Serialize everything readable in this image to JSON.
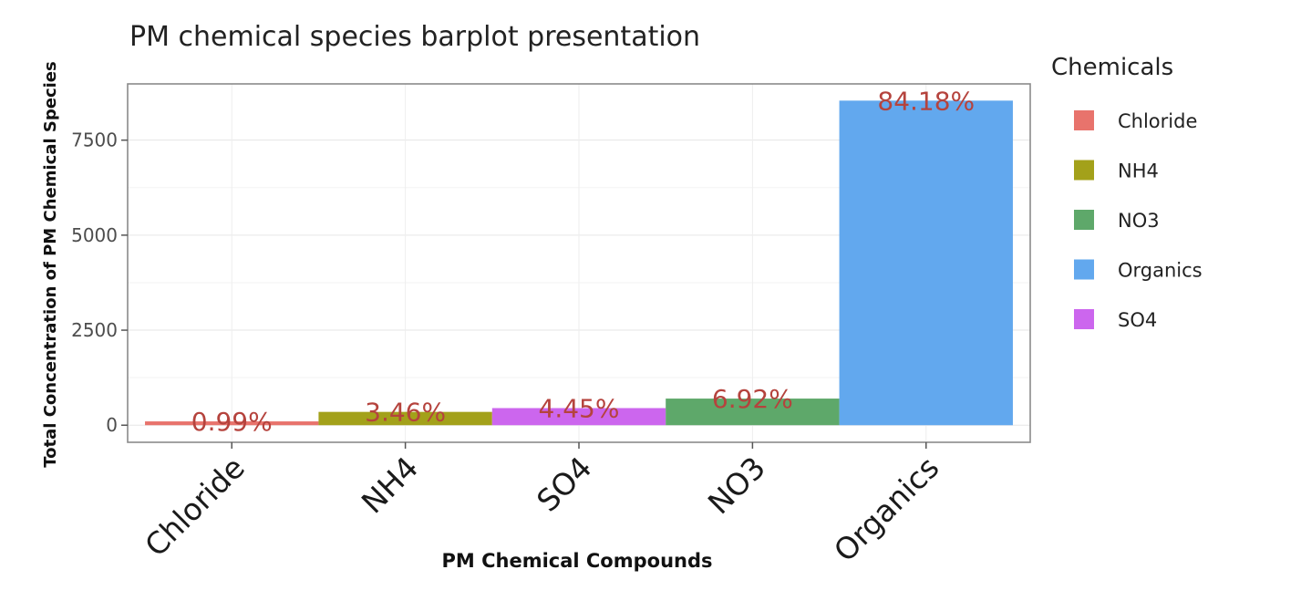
{
  "chart_data": {
    "type": "bar",
    "title": "PM chemical species barplot presentation",
    "xlabel": "PM Chemical Compounds",
    "ylabel": "Total Concentration of PM Chemical Species",
    "categories": [
      "Chloride",
      "NH4",
      "SO4",
      "NO3",
      "Organics"
    ],
    "values": [
      100,
      350,
      450,
      700,
      8540
    ],
    "data_labels": [
      "0.99%",
      "3.46%",
      "4.45%",
      "6.92%",
      "84.18%"
    ],
    "colors": [
      "#e8736c",
      "#a3a11a",
      "#cc66ee",
      "#5ea86a",
      "#62a8ee"
    ],
    "ylim": [
      -450,
      8980
    ],
    "yticks": [
      0,
      2500,
      5000,
      7500
    ],
    "grid": true,
    "legend": {
      "title": "Chemicals",
      "position": "right",
      "items": [
        {
          "label": "Chloride",
          "color": "#e8736c"
        },
        {
          "label": "NH4",
          "color": "#a3a11a"
        },
        {
          "label": "NO3",
          "color": "#5ea86a"
        },
        {
          "label": "Organics",
          "color": "#62a8ee"
        },
        {
          "label": "SO4",
          "color": "#cc66ee"
        }
      ]
    }
  }
}
